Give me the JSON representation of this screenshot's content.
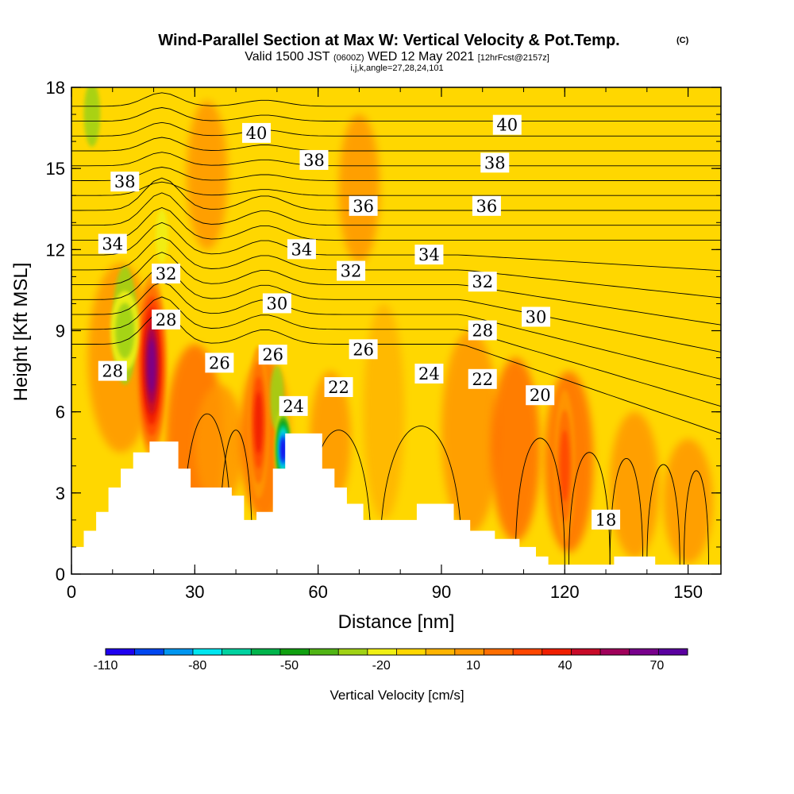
{
  "title": "Wind-Parallel Section at Max W: Vertical Velocity & Pot.Temp.",
  "copyright": "(C)",
  "subtitle": {
    "valid_prefix": "Valid 1500 JST",
    "utc": "(0600Z)",
    "date": "WED 12 May 2021",
    "forecast": "[12hrFcst@2157z]"
  },
  "grid_info": "i,j,k,angle=27,28,24,101",
  "colors": {
    "background_fill": "#FFD700",
    "terrain": "#FFFFFF",
    "contour_line": "#000000",
    "colorbar": [
      "#1E00F0",
      "#0046F0",
      "#0096F0",
      "#00E6F0",
      "#00D2A0",
      "#00B44B",
      "#10A010",
      "#50B414",
      "#A0D214",
      "#F0F014",
      "#FFD700",
      "#FFB400",
      "#FF9600",
      "#FF6E00",
      "#FF4600",
      "#F01E00",
      "#C80A28",
      "#A0005A",
      "#78008C",
      "#5A00A0"
    ]
  },
  "chart_data": {
    "type": "heatmap",
    "description_fields": "vertical velocity (filled) with potential temperature contours",
    "xlabel": "Distance [nm]",
    "ylabel": "Height [Kft MSL]",
    "xlim": [
      0,
      158
    ],
    "ylim": [
      0,
      18
    ],
    "x_ticks": [
      "0",
      "30",
      "60",
      "90",
      "120",
      "150"
    ],
    "y_ticks": [
      "0",
      "3",
      "6",
      "9",
      "12",
      "15",
      "18"
    ],
    "colorbar": {
      "label": "Vertical Velocity [cm/s]",
      "ticks": [
        "-110",
        "-80",
        "-50",
        "-20",
        "10",
        "40",
        "70"
      ],
      "min": -110,
      "max": 80,
      "step": 10
    },
    "terrain": [
      [
        0,
        1
      ],
      [
        3,
        1
      ],
      [
        3,
        1.6
      ],
      [
        6,
        1.6
      ],
      [
        6,
        2.3
      ],
      [
        9,
        2.3
      ],
      [
        9,
        3.2
      ],
      [
        12,
        3.2
      ],
      [
        12,
        3.9
      ],
      [
        15,
        3.9
      ],
      [
        15,
        4.5
      ],
      [
        19,
        4.5
      ],
      [
        19,
        4.9
      ],
      [
        26,
        4.9
      ],
      [
        26,
        3.9
      ],
      [
        29,
        3.9
      ],
      [
        29,
        3.2
      ],
      [
        39,
        3.2
      ],
      [
        39,
        2.9
      ],
      [
        42,
        2.9
      ],
      [
        42,
        2
      ],
      [
        45,
        2
      ],
      [
        45,
        2.3
      ],
      [
        49,
        2.3
      ],
      [
        49,
        3.9
      ],
      [
        52,
        3.9
      ],
      [
        52,
        5.2
      ],
      [
        61,
        5.2
      ],
      [
        61,
        3.9
      ],
      [
        64,
        3.9
      ],
      [
        64,
        3.2
      ],
      [
        67,
        3.2
      ],
      [
        67,
        2.6
      ],
      [
        71,
        2.6
      ],
      [
        71,
        2
      ],
      [
        84,
        2
      ],
      [
        84,
        2.6
      ],
      [
        93,
        2.6
      ],
      [
        93,
        2
      ],
      [
        97,
        2
      ],
      [
        97,
        1.6
      ],
      [
        103,
        1.6
      ],
      [
        103,
        1.3
      ],
      [
        109,
        1.3
      ],
      [
        109,
        1
      ],
      [
        113,
        1
      ],
      [
        113,
        0.65
      ],
      [
        116,
        0.65
      ],
      [
        116,
        0.35
      ],
      [
        132,
        0.35
      ],
      [
        132,
        0.65
      ],
      [
        142,
        0.65
      ],
      [
        142,
        0.35
      ],
      [
        158,
        0.35
      ],
      [
        158,
        0
      ]
    ],
    "updrafts": [
      {
        "x": 19.5,
        "y": 7.7,
        "max_cm_s": 78
      },
      {
        "x": 45.5,
        "y": 5.6,
        "max_cm_s": 45
      },
      {
        "x": 120,
        "y": 4.0,
        "max_cm_s": 35
      }
    ],
    "downdrafts": [
      {
        "x": 51.5,
        "y": 4.6,
        "min_cm_s": -110
      },
      {
        "x": 13.0,
        "y": 9.0,
        "min_cm_s": -35
      }
    ],
    "contour_labels": [
      {
        "text": "40",
        "x": 45,
        "y": 16.3
      },
      {
        "text": "40",
        "x": 106,
        "y": 16.6
      },
      {
        "text": "38",
        "x": 13,
        "y": 14.5
      },
      {
        "text": "38",
        "x": 59,
        "y": 15.3
      },
      {
        "text": "38",
        "x": 103,
        "y": 15.2
      },
      {
        "text": "36",
        "x": 71,
        "y": 13.6
      },
      {
        "text": "36",
        "x": 101,
        "y": 13.6
      },
      {
        "text": "34",
        "x": 10,
        "y": 12.2
      },
      {
        "text": "34",
        "x": 56,
        "y": 12.0
      },
      {
        "text": "34",
        "x": 87,
        "y": 11.8
      },
      {
        "text": "32",
        "x": 23,
        "y": 11.1
      },
      {
        "text": "32",
        "x": 68,
        "y": 11.2
      },
      {
        "text": "32",
        "x": 100,
        "y": 10.8
      },
      {
        "text": "30",
        "x": 50,
        "y": 10.0
      },
      {
        "text": "30",
        "x": 113,
        "y": 9.5
      },
      {
        "text": "28",
        "x": 23,
        "y": 9.4
      },
      {
        "text": "28",
        "x": 10,
        "y": 7.5
      },
      {
        "text": "28",
        "x": 100,
        "y": 9.0
      },
      {
        "text": "26",
        "x": 36,
        "y": 7.8
      },
      {
        "text": "26",
        "x": 49,
        "y": 8.1
      },
      {
        "text": "26",
        "x": 71,
        "y": 8.3
      },
      {
        "text": "24",
        "x": 54,
        "y": 6.2
      },
      {
        "text": "24",
        "x": 87,
        "y": 7.4
      },
      {
        "text": "22",
        "x": 65,
        "y": 6.9
      },
      {
        "text": "22",
        "x": 100,
        "y": 7.2
      },
      {
        "text": "20",
        "x": 114,
        "y": 6.6
      },
      {
        "text": "18",
        "x": 130,
        "y": 2.0
      }
    ]
  }
}
